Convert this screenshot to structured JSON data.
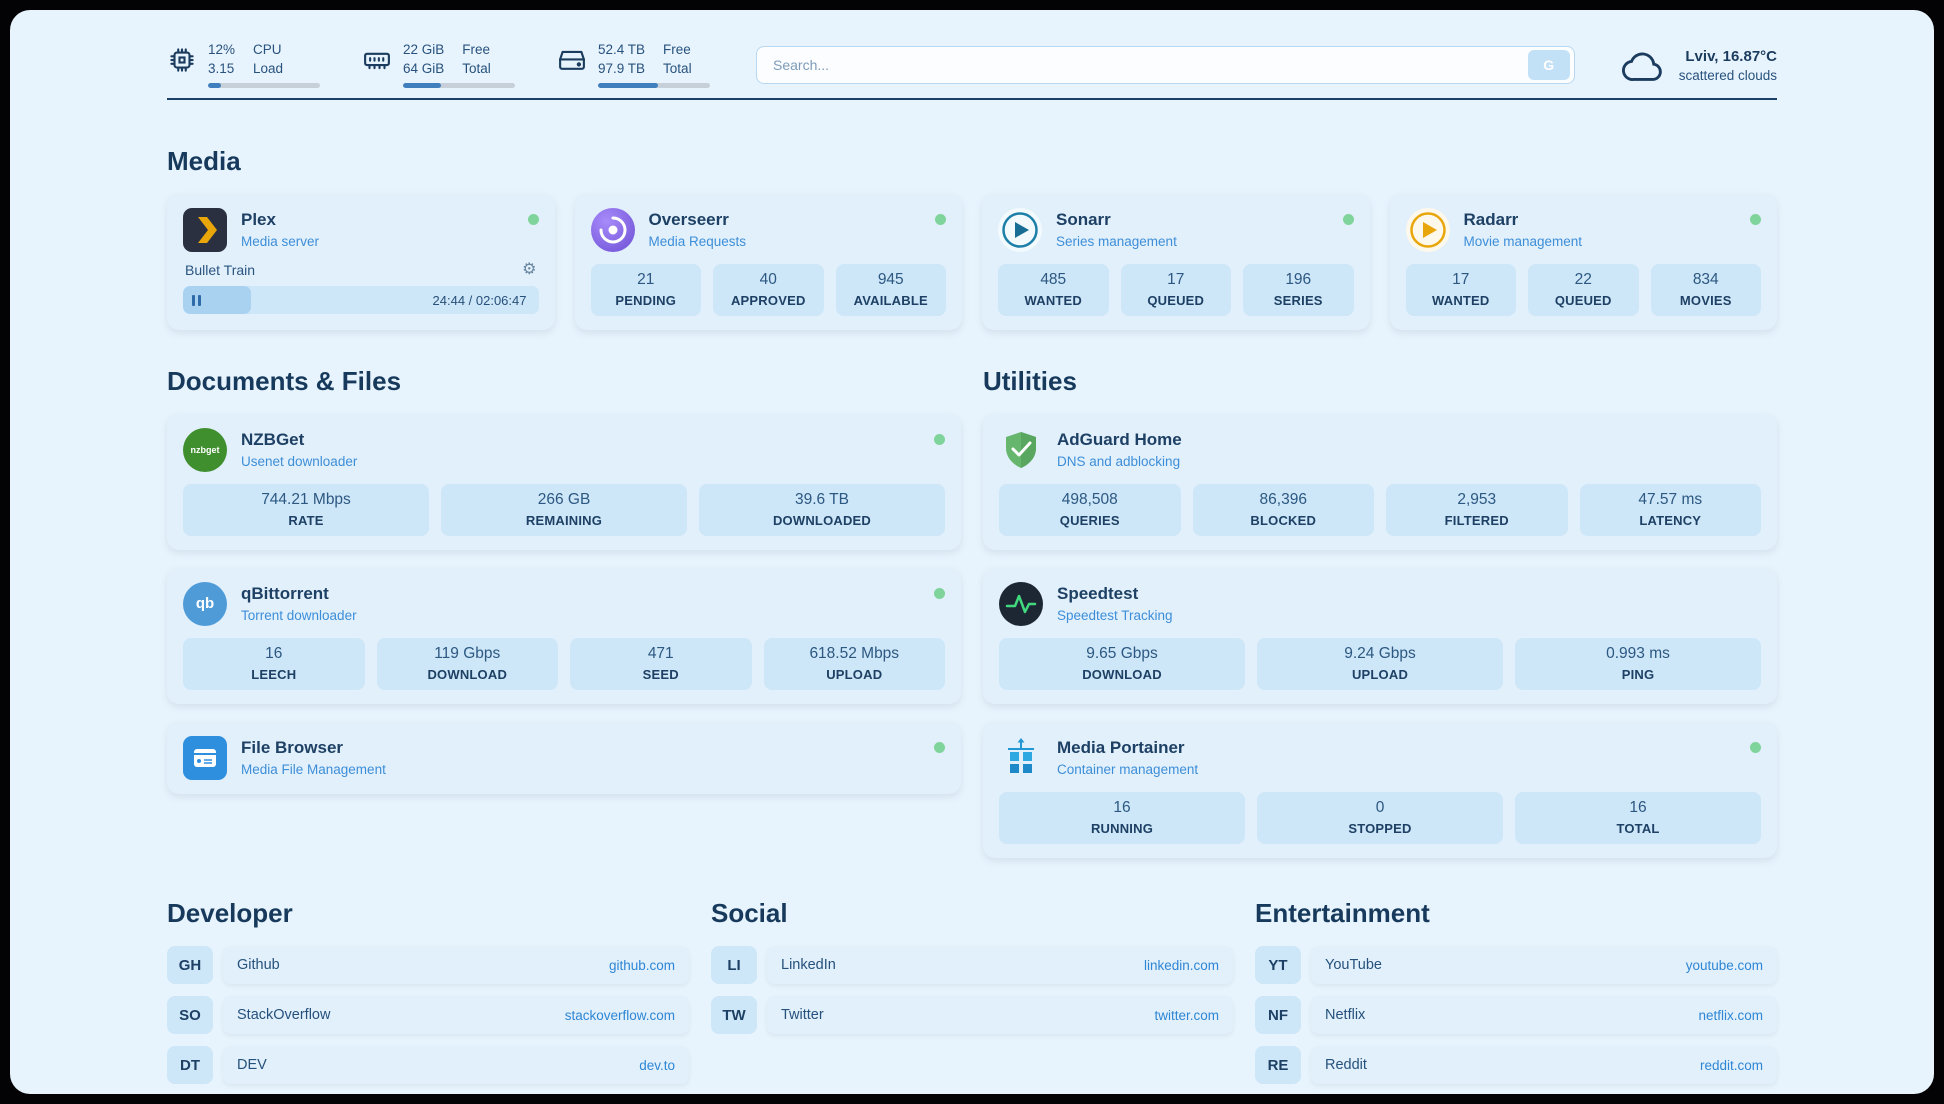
{
  "colors": {
    "background": "#e8f4fd",
    "card": "#e2f0fb",
    "tile": "#cde6f8",
    "navy_text": "#1d4064",
    "subtitle_blue": "#3d8ed8",
    "link_blue": "#2e86d4",
    "status_green": "#7fd49b",
    "bar_fill": "#3f7fbd"
  },
  "header": {
    "cpu": {
      "value1": "12%",
      "value2": "3.15",
      "label1": "CPU",
      "label2": "Load",
      "bar_percent": 12
    },
    "ram": {
      "value1": "22 GiB",
      "value2": "64 GiB",
      "label1": "Free",
      "label2": "Total",
      "bar_percent": 34
    },
    "disk": {
      "value1": "52.4 TB",
      "value2": "97.9 TB",
      "label1": "Free",
      "label2": "Total",
      "bar_percent": 54
    },
    "search": {
      "placeholder": "Search...",
      "button_label": "G"
    },
    "weather": {
      "location": "Lviv, 16.87°C",
      "condition": "scattered clouds"
    }
  },
  "sections": {
    "media": {
      "title": "Media",
      "cards": [
        {
          "name": "Plex",
          "subtitle": "Media server",
          "now_playing": "Bullet Train",
          "time": "24:44 / 02:06:47",
          "progress_percent": 19
        },
        {
          "name": "Overseerr",
          "subtitle": "Media Requests",
          "stats": [
            {
              "value": "21",
              "label": "PENDING"
            },
            {
              "value": "40",
              "label": "APPROVED"
            },
            {
              "value": "945",
              "label": "AVAILABLE"
            }
          ]
        },
        {
          "name": "Sonarr",
          "subtitle": "Series management",
          "stats": [
            {
              "value": "485",
              "label": "WANTED"
            },
            {
              "value": "17",
              "label": "QUEUED"
            },
            {
              "value": "196",
              "label": "SERIES"
            }
          ]
        },
        {
          "name": "Radarr",
          "subtitle": "Movie management",
          "stats": [
            {
              "value": "17",
              "label": "WANTED"
            },
            {
              "value": "22",
              "label": "QUEUED"
            },
            {
              "value": "834",
              "label": "MOVIES"
            }
          ]
        }
      ]
    },
    "documents": {
      "title": "Documents & Files",
      "cards": [
        {
          "name": "NZBGet",
          "subtitle": "Usenet downloader",
          "icon_text": "nzbget",
          "stats": [
            {
              "value": "744.21 Mbps",
              "label": "RATE"
            },
            {
              "value": "266 GB",
              "label": "REMAINING"
            },
            {
              "value": "39.6 TB",
              "label": "DOWNLOADED"
            }
          ]
        },
        {
          "name": "qBittorrent",
          "subtitle": "Torrent downloader",
          "icon_text": "qb",
          "stats": [
            {
              "value": "16",
              "label": "LEECH"
            },
            {
              "value": "119 Gbps",
              "label": "DOWNLOAD"
            },
            {
              "value": "471",
              "label": "SEED"
            },
            {
              "value": "618.52 Mbps",
              "label": "UPLOAD"
            }
          ]
        },
        {
          "name": "File Browser",
          "subtitle": "Media File Management"
        }
      ]
    },
    "utilities": {
      "title": "Utilities",
      "cards": [
        {
          "name": "AdGuard Home",
          "subtitle": "DNS and adblocking",
          "stats": [
            {
              "value": "498,508",
              "label": "QUERIES"
            },
            {
              "value": "86,396",
              "label": "BLOCKED"
            },
            {
              "value": "2,953",
              "label": "FILTERED"
            },
            {
              "value": "47.57 ms",
              "label": "LATENCY"
            }
          ]
        },
        {
          "name": "Speedtest",
          "subtitle": "Speedtest Tracking",
          "stats": [
            {
              "value": "9.65 Gbps",
              "label": "DOWNLOAD"
            },
            {
              "value": "9.24 Gbps",
              "label": "UPLOAD"
            },
            {
              "value": "0.993 ms",
              "label": "PING"
            }
          ]
        },
        {
          "name": "Media Portainer",
          "subtitle": "Container management",
          "stats": [
            {
              "value": "16",
              "label": "RUNNING"
            },
            {
              "value": "0",
              "label": "STOPPED"
            },
            {
              "value": "16",
              "label": "TOTAL"
            }
          ]
        }
      ]
    },
    "bookmarks": [
      {
        "title": "Developer",
        "links": [
          {
            "abbr": "GH",
            "name": "Github",
            "url": "github.com"
          },
          {
            "abbr": "SO",
            "name": "StackOverflow",
            "url": "stackoverflow.com"
          },
          {
            "abbr": "DT",
            "name": "DEV",
            "url": "dev.to"
          }
        ]
      },
      {
        "title": "Social",
        "links": [
          {
            "abbr": "LI",
            "name": "LinkedIn",
            "url": "linkedin.com"
          },
          {
            "abbr": "TW",
            "name": "Twitter",
            "url": "twitter.com"
          }
        ]
      },
      {
        "title": "Entertainment",
        "links": [
          {
            "abbr": "YT",
            "name": "YouTube",
            "url": "youtube.com"
          },
          {
            "abbr": "NF",
            "name": "Netflix",
            "url": "netflix.com"
          },
          {
            "abbr": "RE",
            "name": "Reddit",
            "url": "reddit.com"
          }
        ]
      }
    ]
  }
}
